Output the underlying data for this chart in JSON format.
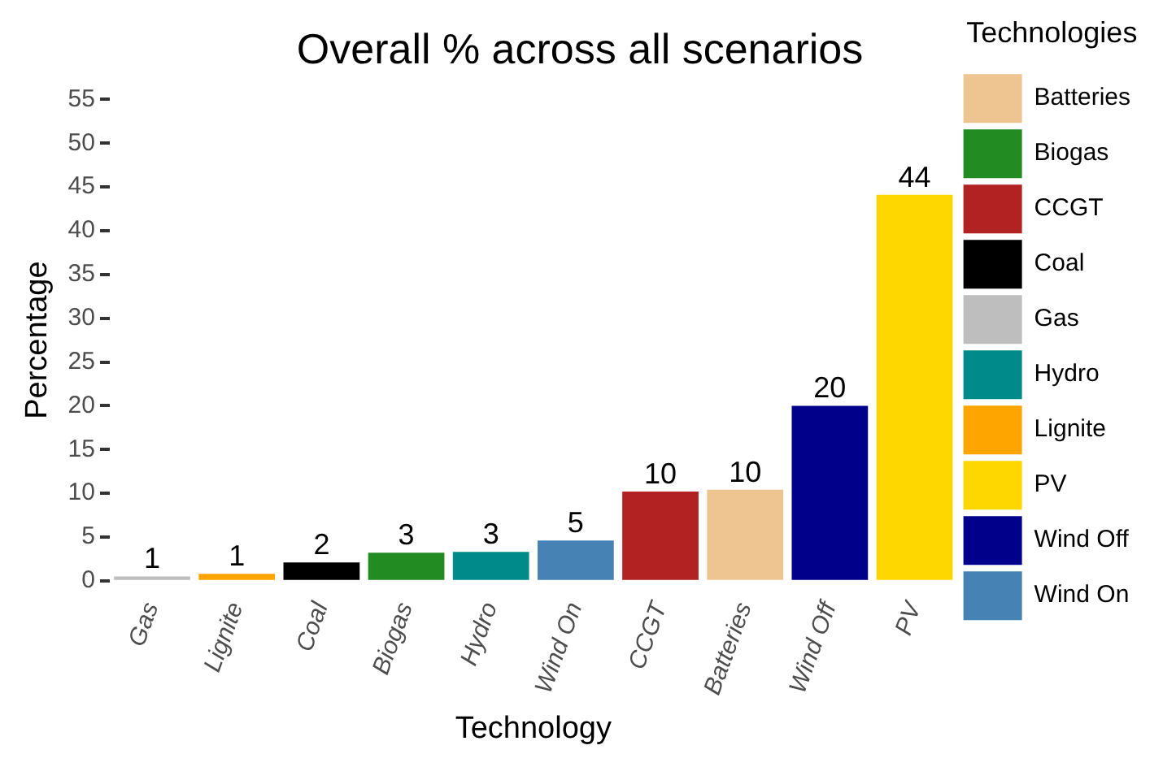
{
  "chart_data": {
    "type": "bar",
    "title": "Overall % across all scenarios",
    "xlabel": "Technology",
    "ylabel": "Percentage",
    "legend_title": "Technologies",
    "legend": "right",
    "categories": [
      "Gas",
      "Lignite",
      "Coal",
      "Biogas",
      "Hydro",
      "Wind On",
      "CCGT",
      "Batteries",
      "Wind Off",
      "PV"
    ],
    "series": [
      {
        "name": "Batteries",
        "color": "#eec591",
        "values": [
          null,
          null,
          null,
          null,
          null,
          null,
          null,
          10.4,
          null,
          null
        ],
        "value_labels": [
          null,
          null,
          null,
          null,
          null,
          null,
          null,
          "10",
          null,
          null
        ]
      },
      {
        "name": "Biogas",
        "color": "#228b22",
        "values": [
          null,
          null,
          null,
          3.2,
          null,
          null,
          null,
          null,
          null,
          null
        ],
        "value_labels": [
          null,
          null,
          null,
          "3",
          null,
          null,
          null,
          null,
          null,
          null
        ]
      },
      {
        "name": "CCGT",
        "color": "#b22222",
        "values": [
          null,
          null,
          null,
          null,
          null,
          null,
          10.2,
          null,
          null,
          null
        ],
        "value_labels": [
          null,
          null,
          null,
          null,
          null,
          null,
          "10",
          null,
          null,
          null
        ]
      },
      {
        "name": "Coal",
        "color": "#000000",
        "values": [
          null,
          null,
          2.1,
          null,
          null,
          null,
          null,
          null,
          null,
          null
        ],
        "value_labels": [
          null,
          null,
          "2",
          null,
          null,
          null,
          null,
          null,
          null,
          null
        ]
      },
      {
        "name": "Gas",
        "color": "#bebebe",
        "values": [
          0.5,
          null,
          null,
          null,
          null,
          null,
          null,
          null,
          null,
          null
        ],
        "value_labels": [
          "1",
          null,
          null,
          null,
          null,
          null,
          null,
          null,
          null,
          null
        ]
      },
      {
        "name": "Hydro",
        "color": "#008b8b",
        "values": [
          null,
          null,
          null,
          null,
          3.3,
          null,
          null,
          null,
          null,
          null
        ],
        "value_labels": [
          null,
          null,
          null,
          null,
          "3",
          null,
          null,
          null,
          null,
          null
        ]
      },
      {
        "name": "Lignite",
        "color": "#ffa500",
        "values": [
          null,
          0.8,
          null,
          null,
          null,
          null,
          null,
          null,
          null,
          null
        ],
        "value_labels": [
          null,
          "1",
          null,
          null,
          null,
          null,
          null,
          null,
          null,
          null
        ]
      },
      {
        "name": "PV",
        "color": "#ffd700",
        "values": [
          null,
          null,
          null,
          null,
          null,
          null,
          null,
          null,
          null,
          44.1
        ],
        "value_labels": [
          null,
          null,
          null,
          null,
          null,
          null,
          null,
          null,
          null,
          "44"
        ]
      },
      {
        "name": "Wind Off",
        "color": "#00008b",
        "values": [
          null,
          null,
          null,
          null,
          null,
          null,
          null,
          null,
          20.0,
          null
        ],
        "value_labels": [
          null,
          null,
          null,
          null,
          null,
          null,
          null,
          null,
          "20",
          null
        ]
      },
      {
        "name": "Wind On",
        "color": "#4682b4",
        "values": [
          null,
          null,
          null,
          null,
          null,
          4.6,
          null,
          null,
          null,
          null
        ],
        "value_labels": [
          null,
          null,
          null,
          null,
          null,
          "5",
          null,
          null,
          null,
          null
        ]
      }
    ],
    "ylim": [
      0,
      55
    ],
    "yticks": [
      0,
      5,
      10,
      15,
      20,
      25,
      30,
      35,
      40,
      45,
      50,
      55
    ],
    "grid": false
  }
}
